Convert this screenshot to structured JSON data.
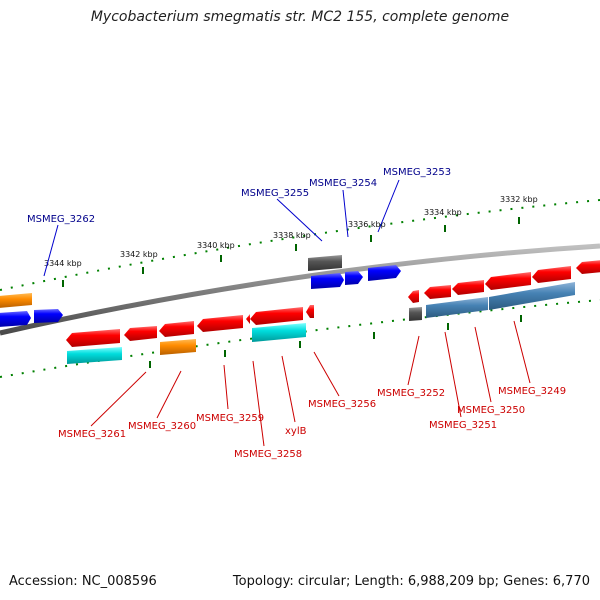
{
  "title": "Mycobacterium smegmatis str. MC2 155, complete genome",
  "footer": {
    "accession": "Accession: NC_008596",
    "summary": "Topology: circular; Length: 6,988,209 bp; Genes: 6,770"
  },
  "colors": {
    "backbone": "#808080",
    "forward_gene": "#0000ff",
    "reverse_gene": "#ff0000",
    "forward_label": "#00008b",
    "reverse_label": "#cc0000",
    "tick": "#006400",
    "orange_feature": "#ff8c00",
    "cyan_feature": "#00cccc",
    "gray_feature": "#555555",
    "steelblue_feature": "#4682b4"
  },
  "ticks": [
    "3344 kbp",
    "3342 kbp",
    "3340 kbp",
    "3338 kbp",
    "3336 kbp",
    "3334 kbp",
    "3332 kbp"
  ],
  "forward_labels": [
    "MSMEG_3262",
    "MSMEG_3255",
    "MSMEG_3254",
    "MSMEG_3253"
  ],
  "reverse_labels": [
    "MSMEG_3261",
    "MSMEG_3260",
    "MSMEG_3259",
    "MSMEG_3258",
    "xylB",
    "MSMEG_3256",
    "MSMEG_3252",
    "MSMEG_3251",
    "MSMEG_3250",
    "MSMEG_3249"
  ]
}
